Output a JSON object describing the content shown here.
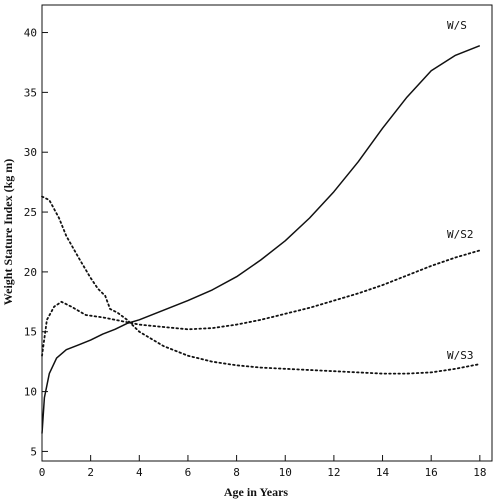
{
  "chart_data": {
    "type": "line",
    "xlabel": "Age in Years",
    "ylabel": "Weight Stature Index (kg m)",
    "xlim": [
      0,
      18.5
    ],
    "ylim": [
      4.2,
      42.3
    ],
    "x_ticks": [
      "0",
      "2",
      "4",
      "6",
      "8",
      "10",
      "12",
      "14",
      "16",
      "18"
    ],
    "y_ticks": [
      "5",
      "10",
      "15",
      "20",
      "25",
      "30",
      "35",
      "40"
    ],
    "grid": false,
    "series": [
      {
        "name": "W/S",
        "style": "solid",
        "color": "#111111",
        "x": [
          0,
          0.1,
          0.3,
          0.6,
          1.0,
          1.5,
          2.0,
          2.5,
          3.0,
          3.5,
          4.0,
          5.0,
          6.0,
          7.0,
          8.0,
          9.0,
          10.0,
          11.0,
          12.0,
          13.0,
          14.0,
          15.0,
          16.0,
          17.0,
          18.0
        ],
        "y": [
          6.5,
          9.5,
          11.5,
          12.8,
          13.5,
          13.9,
          14.3,
          14.8,
          15.2,
          15.7,
          16.0,
          16.8,
          17.6,
          18.5,
          19.6,
          21.0,
          22.6,
          24.5,
          26.7,
          29.2,
          32.0,
          34.6,
          36.8,
          38.1,
          38.9
        ]
      },
      {
        "name": "W/S2",
        "style": "dotted",
        "color": "#111111",
        "x": [
          0,
          0.2,
          0.5,
          0.8,
          1.2,
          1.8,
          2.5,
          3.0,
          3.5,
          4.0,
          5.0,
          6.0,
          7.0,
          8.0,
          9.0,
          10.0,
          11.0,
          12.0,
          13.0,
          14.0,
          15.0,
          16.0,
          17.0,
          18.0
        ],
        "y": [
          13.0,
          16.0,
          17.1,
          17.5,
          17.1,
          16.4,
          16.2,
          16.0,
          15.8,
          15.6,
          15.4,
          15.2,
          15.3,
          15.6,
          16.0,
          16.5,
          17.0,
          17.6,
          18.2,
          18.9,
          19.7,
          20.5,
          21.2,
          21.8
        ]
      },
      {
        "name": "W/S3",
        "style": "dotted",
        "color": "#111111",
        "x": [
          0,
          0.3,
          0.7,
          1.0,
          1.5,
          2.0,
          2.3,
          2.6,
          2.8,
          3.1,
          3.5,
          4.0,
          5.0,
          6.0,
          7.0,
          8.0,
          9.0,
          10.0,
          11.0,
          12.0,
          13.0,
          14.0,
          15.0,
          16.0,
          17.0,
          18.0
        ],
        "y": [
          26.3,
          26.0,
          24.5,
          23.0,
          21.2,
          19.5,
          18.6,
          18.0,
          16.9,
          16.6,
          16.0,
          15.0,
          13.8,
          13.0,
          12.5,
          12.2,
          12.0,
          11.9,
          11.8,
          11.7,
          11.6,
          11.5,
          11.5,
          11.6,
          11.9,
          12.3
        ]
      }
    ]
  }
}
